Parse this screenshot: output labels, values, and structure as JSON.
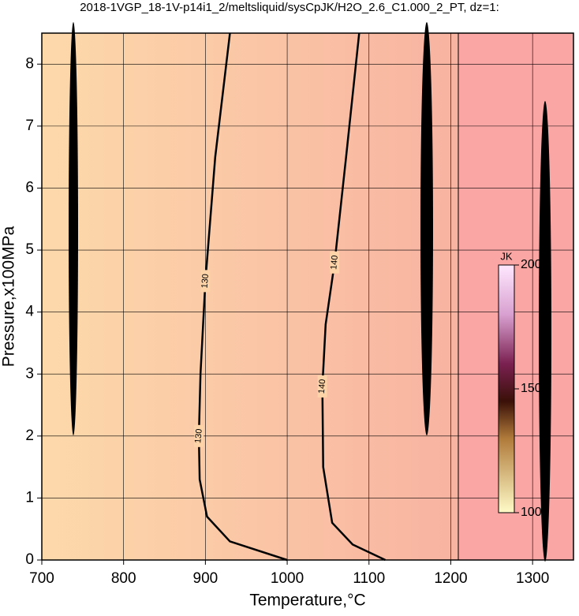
{
  "chart_data": {
    "type": "contour",
    "title": "2018-1VGP_18-1V-p14i1_2/meltsliquid/sysCpJK/H2O_2.6_C1.000_2_PT, dz=1:",
    "x_label": "Temperature,°C",
    "y_label": "Pressure,x100MPa",
    "xlim": [
      700,
      1350
    ],
    "ylim": [
      0,
      8.5
    ],
    "xticks": [
      700,
      800,
      900,
      1000,
      1100,
      1200,
      1300
    ],
    "yticks": [
      0,
      1,
      2,
      3,
      4,
      5,
      6,
      7,
      8
    ],
    "grid": true,
    "contours": [
      {
        "level": 130,
        "x": [
          930,
          912,
          900,
          894,
          892,
          893,
          902,
          930,
          1000
        ],
        "y": [
          8.5,
          6.5,
          4.5,
          3.0,
          2.0,
          1.3,
          0.7,
          0.3,
          0
        ]
      },
      {
        "level": 140,
        "x": [
          1088,
          1072,
          1058,
          1047,
          1043,
          1044,
          1055,
          1080,
          1120
        ],
        "y": [
          8.5,
          6.5,
          4.8,
          3.8,
          2.8,
          1.5,
          0.6,
          0.25,
          0
        ]
      }
    ],
    "colorbar": {
      "label": "JK",
      "lim": [
        100,
        200
      ],
      "ticks": [
        100,
        150,
        200
      ]
    }
  }
}
